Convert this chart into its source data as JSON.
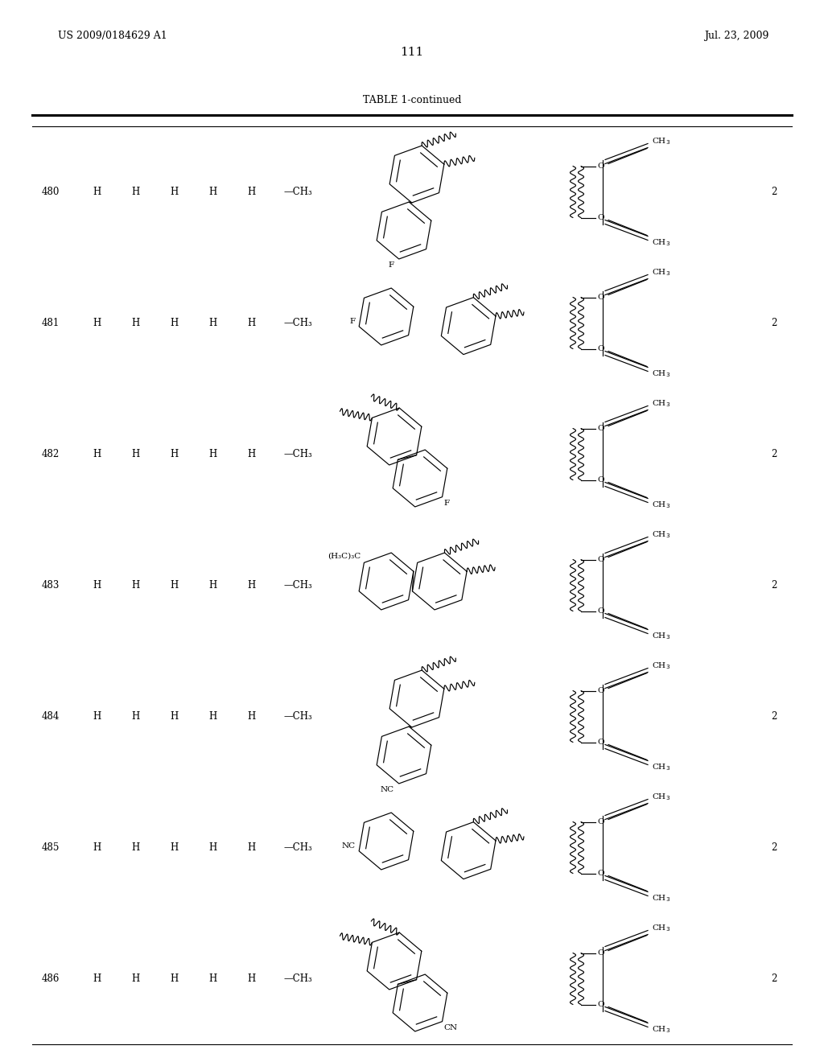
{
  "patent_number": "US 2009/0184629 A1",
  "patent_date": "Jul. 23, 2009",
  "page_number": "111",
  "table_title": "TABLE 1-continued",
  "row_ids": [
    480,
    481,
    482,
    483,
    484,
    485,
    486
  ],
  "substituents_mid": [
    "F_bottom",
    "F_topleft_naph",
    "F_bottom_naph",
    "tBu_topleft",
    "CN_bottom",
    "CN_topleft_naph",
    "CN_bottom_naph"
  ],
  "n_values": [
    "2",
    "2",
    "2",
    "2",
    "2",
    "2",
    "2"
  ]
}
